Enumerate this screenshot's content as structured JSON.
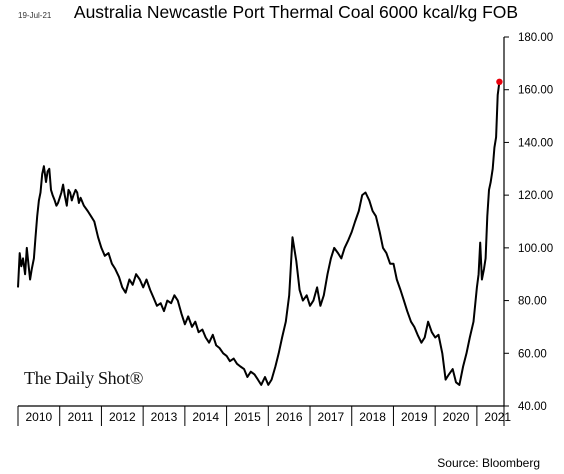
{
  "header": {
    "date_stamp": "19-Jul-21",
    "title": "Australia Newcastle Port Thermal Coal 6000 kcal/kg FOB"
  },
  "footer": {
    "source": "Source: Bloomberg",
    "brand": "The Daily Shot®"
  },
  "colors": {
    "line": "#000000",
    "last_point_marker": "#e8000b",
    "axis": "#000000"
  },
  "chart_data": {
    "type": "line",
    "title": "Australia Newcastle Port Thermal Coal 6000 kcal/kg FOB",
    "xlabel": "",
    "ylabel": "",
    "ylim": [
      40,
      180
    ],
    "xlim": [
      2010.0,
      2021.65
    ],
    "y_axis_side": "right",
    "yticks": [
      "40.00",
      "60.00",
      "80.00",
      "100.00",
      "120.00",
      "140.00",
      "160.00",
      "180.00"
    ],
    "xticks": [
      "2010",
      "2011",
      "2012",
      "2013",
      "2014",
      "2015",
      "2016",
      "2017",
      "2018",
      "2019",
      "2020",
      "2021"
    ],
    "grid": false,
    "last_point_marker": true,
    "series": [
      {
        "x": [
          2010.0,
          2010.04,
          2010.08,
          2010.12,
          2010.17,
          2010.21,
          2010.25,
          2010.29,
          2010.33,
          2010.38,
          2010.42,
          2010.46,
          2010.5,
          2010.54,
          2010.58,
          2010.62,
          2010.67,
          2010.71,
          2010.75,
          2010.79,
          2010.83,
          2010.88,
          2010.92,
          2010.96,
          2011.0,
          2011.04,
          2011.08,
          2011.12,
          2011.17,
          2011.21,
          2011.25,
          2011.29,
          2011.33,
          2011.38,
          2011.42,
          2011.46,
          2011.5,
          2011.58,
          2011.67,
          2011.75,
          2011.83,
          2011.92,
          2012.0,
          2012.08,
          2012.17,
          2012.25,
          2012.33,
          2012.42,
          2012.5,
          2012.58,
          2012.67,
          2012.75,
          2012.83,
          2012.92,
          2013.0,
          2013.08,
          2013.17,
          2013.25,
          2013.33,
          2013.42,
          2013.5,
          2013.58,
          2013.67,
          2013.75,
          2013.83,
          2013.92,
          2014.0,
          2014.08,
          2014.17,
          2014.25,
          2014.33,
          2014.42,
          2014.5,
          2014.58,
          2014.67,
          2014.75,
          2014.83,
          2014.92,
          2015.0,
          2015.08,
          2015.17,
          2015.25,
          2015.33,
          2015.42,
          2015.5,
          2015.58,
          2015.67,
          2015.75,
          2015.83,
          2015.92,
          2016.0,
          2016.08,
          2016.17,
          2016.25,
          2016.33,
          2016.42,
          2016.5,
          2016.58,
          2016.67,
          2016.75,
          2016.83,
          2016.92,
          2017.0,
          2017.08,
          2017.17,
          2017.25,
          2017.33,
          2017.42,
          2017.5,
          2017.58,
          2017.67,
          2017.75,
          2017.83,
          2017.92,
          2018.0,
          2018.08,
          2018.17,
          2018.25,
          2018.33,
          2018.42,
          2018.5,
          2018.58,
          2018.67,
          2018.75,
          2018.83,
          2018.92,
          2019.0,
          2019.08,
          2019.17,
          2019.25,
          2019.33,
          2019.42,
          2019.5,
          2019.58,
          2019.67,
          2019.75,
          2019.83,
          2019.92,
          2020.0,
          2020.08,
          2020.17,
          2020.25,
          2020.33,
          2020.42,
          2020.5,
          2020.58,
          2020.67,
          2020.75,
          2020.83,
          2020.92,
          2021.0,
          2021.04,
          2021.08,
          2021.12,
          2021.17,
          2021.21,
          2021.25,
          2021.29,
          2021.33,
          2021.38,
          2021.42,
          2021.46,
          2021.5,
          2021.54
        ],
        "y": [
          85,
          98,
          93,
          96,
          90,
          100,
          94,
          88,
          92,
          96,
          104,
          112,
          118,
          121,
          128,
          131,
          125,
          129,
          130,
          122,
          120,
          118,
          116,
          117,
          119,
          121,
          124,
          120,
          116,
          122,
          121,
          118,
          120,
          122,
          121,
          117,
          119,
          116,
          114,
          112,
          110,
          104,
          100,
          97,
          98,
          94,
          92,
          89,
          85,
          83,
          88,
          86,
          90,
          88,
          85,
          88,
          84,
          81,
          78,
          79,
          76,
          80,
          79,
          82,
          80,
          75,
          71,
          74,
          70,
          72,
          68,
          69,
          66,
          64,
          67,
          63,
          62,
          60,
          59,
          57,
          58,
          56,
          55,
          54,
          51,
          53,
          52,
          50,
          48,
          51,
          48,
          50,
          55,
          60,
          66,
          72,
          82,
          104,
          95,
          84,
          80,
          82,
          78,
          80,
          85,
          78,
          82,
          90,
          96,
          100,
          98,
          96,
          100,
          103,
          106,
          110,
          114,
          120,
          121,
          118,
          114,
          112,
          106,
          100,
          98,
          94,
          94,
          88,
          84,
          80,
          76,
          72,
          70,
          67,
          64,
          66,
          72,
          68,
          66,
          67,
          60,
          50,
          52,
          54,
          49,
          48,
          55,
          60,
          66,
          72,
          85,
          90,
          102,
          88,
          92,
          96,
          112,
          122,
          125,
          130,
          138,
          142,
          158,
          163
        ]
      }
    ]
  }
}
